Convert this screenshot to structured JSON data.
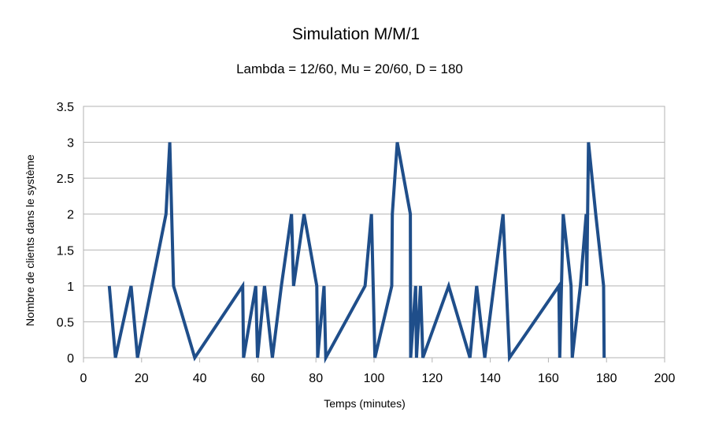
{
  "chart_data": {
    "type": "line",
    "title": "Simulation M/M/1",
    "subtitle": "Lambda = 12/60, Mu = 20/60, D = 180",
    "xlabel": "Temps (minutes)",
    "ylabel": "Nombre de clients dans le système",
    "xlim": [
      0,
      200
    ],
    "ylim": [
      0,
      3.5
    ],
    "x_ticks": [
      0,
      20,
      40,
      60,
      80,
      100,
      120,
      140,
      160,
      180,
      200
    ],
    "y_ticks": [
      0,
      0.5,
      1,
      1.5,
      2,
      2.5,
      3,
      3.5
    ],
    "x_tick_labels": [
      "0",
      "20",
      "40",
      "60",
      "80",
      "100",
      "120",
      "140",
      "160",
      "180",
      "200"
    ],
    "y_tick_labels": [
      "0",
      "0.5",
      "1",
      "1.5",
      "2",
      "2.5",
      "3",
      "3.5"
    ],
    "grid": "horizontal",
    "legend": "none",
    "color": "#1f4e8a",
    "series": [
      {
        "values": [
          [
            8.9,
            1
          ],
          [
            11.0,
            0
          ],
          [
            16.4,
            1
          ],
          [
            18.6,
            0
          ],
          [
            28.4,
            2
          ],
          [
            29.7,
            3
          ],
          [
            31.0,
            1
          ],
          [
            38.3,
            0
          ],
          [
            54.8,
            1
          ],
          [
            55.1,
            0
          ],
          [
            59.3,
            1
          ],
          [
            59.9,
            0
          ],
          [
            62.3,
            1
          ],
          [
            65.0,
            0
          ],
          [
            68.1,
            1
          ],
          [
            71.6,
            2
          ],
          [
            72.3,
            1
          ],
          [
            75.9,
            2
          ],
          [
            80.3,
            1
          ],
          [
            80.6,
            0
          ],
          [
            82.8,
            1
          ],
          [
            83.4,
            0
          ],
          [
            96.9,
            1
          ],
          [
            99.1,
            2
          ],
          [
            100.3,
            0
          ],
          [
            106.1,
            1
          ],
          [
            106.3,
            2
          ],
          [
            108.0,
            3
          ],
          [
            112.5,
            2
          ],
          [
            112.6,
            0
          ],
          [
            114.3,
            1
          ],
          [
            114.6,
            0
          ],
          [
            116.0,
            1
          ],
          [
            116.8,
            0
          ],
          [
            125.7,
            1
          ],
          [
            133.0,
            0
          ],
          [
            135.3,
            1
          ],
          [
            138.1,
            0
          ],
          [
            144.4,
            2
          ],
          [
            146.6,
            0
          ],
          [
            163.6,
            1
          ],
          [
            163.9,
            0
          ],
          [
            165.1,
            2
          ],
          [
            167.8,
            1
          ],
          [
            168.2,
            0
          ],
          [
            171.0,
            1
          ],
          [
            173.0,
            2
          ],
          [
            173.2,
            1
          ],
          [
            173.8,
            3
          ],
          [
            176.3,
            2
          ],
          [
            179.0,
            1
          ],
          [
            179.2,
            0
          ]
        ]
      }
    ]
  }
}
